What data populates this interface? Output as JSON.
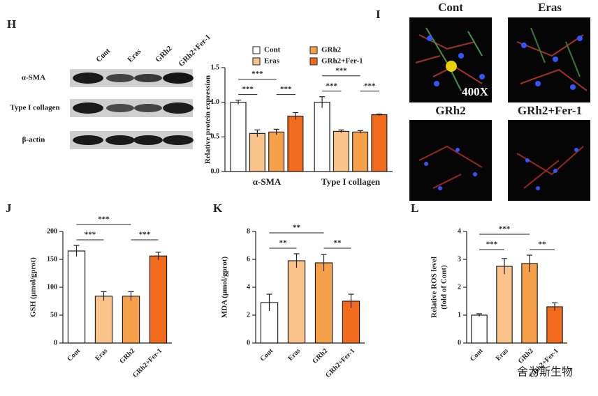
{
  "panels": {
    "blot": "H",
    "images": "I"
  },
  "blot": {
    "lanes": [
      "Cont",
      "Eras",
      "GRh2",
      "GRh2+Fer-1"
    ],
    "rows": [
      "α-SMA",
      "Type I collagen",
      "β-actin"
    ]
  },
  "micrographs": {
    "labels": [
      "Cont",
      "Eras",
      "GRh2",
      "GRh2+Fer-1"
    ],
    "magnification": "400X"
  },
  "watermark": "舍为斯生物",
  "chart_data": [
    {
      "type": "grouped-bar",
      "ylabel": "Relative protein expression",
      "categories": [
        "α-SMA",
        "Type I collagen"
      ],
      "series": [
        {
          "name": "Cont",
          "color": "#ffffff",
          "values": [
            1.0,
            1.0
          ],
          "errors": [
            0.03,
            0.08
          ]
        },
        {
          "name": "Eras",
          "color": "#f9c38a",
          "values": [
            0.55,
            0.58
          ],
          "errors": [
            0.05,
            0.02
          ]
        },
        {
          "name": "GRh2",
          "color": "#f7a04a",
          "values": [
            0.57,
            0.57
          ],
          "errors": [
            0.04,
            0.02
          ]
        },
        {
          "name": "GRh2+Fer-1",
          "color": "#f26a1b",
          "values": [
            0.8,
            0.82
          ],
          "errors": [
            0.05,
            0.01
          ]
        }
      ],
      "ylim": [
        0,
        1.5
      ],
      "yticks": [
        {
          "value": 0,
          "label": "0.0"
        },
        {
          "value": 0.5,
          "label": "0.5"
        },
        {
          "value": 1,
          "label": "1.0"
        },
        {
          "value": 1.5,
          "label": "1.5"
        }
      ],
      "annotations": [
        "***",
        "***",
        "***",
        "***",
        "***",
        "***"
      ]
    },
    {
      "type": "bar",
      "panel": "J",
      "ylabel": "GSH (μmol/gprot)",
      "categories": [
        "Cont",
        "Eras",
        "GRh2",
        "GRh2+Fer-1"
      ],
      "values": [
        165,
        84,
        84,
        156
      ],
      "errors": [
        10,
        8,
        8,
        7
      ],
      "colors": [
        "#ffffff",
        "#f9c38a",
        "#f7a04a",
        "#f26a1b"
      ],
      "ylim": [
        0,
        200
      ],
      "yticks": [
        0,
        50,
        100,
        150,
        200
      ],
      "annotations": [
        "***",
        "***",
        "***"
      ]
    },
    {
      "type": "bar",
      "panel": "K",
      "ylabel": "MDA (μmol/gprot)",
      "categories": [
        "Cont",
        "Eras",
        "GRh2",
        "GRh2+Fer-1"
      ],
      "values": [
        2.9,
        5.9,
        5.75,
        3.0
      ],
      "errors": [
        0.6,
        0.5,
        0.6,
        0.5
      ],
      "colors": [
        "#ffffff",
        "#f9c38a",
        "#f7a04a",
        "#f26a1b"
      ],
      "ylim": [
        0,
        8
      ],
      "yticks": [
        0,
        2,
        4,
        6,
        8
      ],
      "annotations": [
        "**",
        "**",
        "**"
      ]
    },
    {
      "type": "bar",
      "panel": "L",
      "ylabel": [
        "Relative ROS level",
        "(fold of Cont)"
      ],
      "categories": [
        "Cont",
        "Eras",
        "GRh2",
        "GRh2+Fer-1"
      ],
      "values": [
        1.0,
        2.75,
        2.85,
        1.3
      ],
      "errors": [
        0.05,
        0.28,
        0.3,
        0.14
      ],
      "colors": [
        "#ffffff",
        "#f9c38a",
        "#f7a04a",
        "#f26a1b"
      ],
      "ylim": [
        0,
        4
      ],
      "yticks": [
        0,
        1,
        2,
        3,
        4
      ],
      "annotations": [
        "***",
        "***",
        "**"
      ]
    }
  ]
}
